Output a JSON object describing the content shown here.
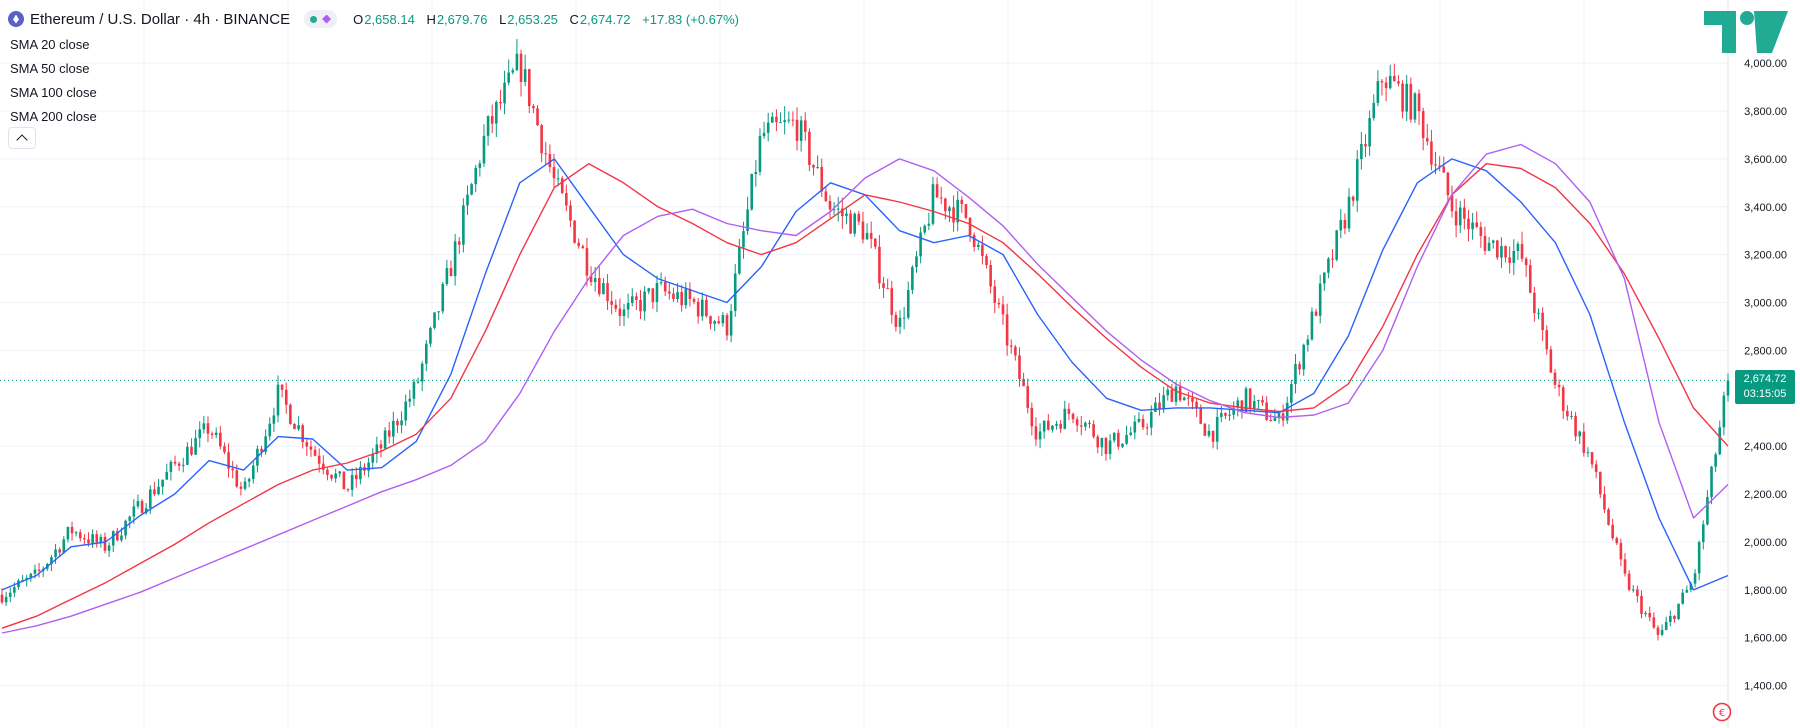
{
  "header": {
    "symbol_title": "Ethereum / U.S. Dollar · 4h · BINANCE",
    "ohlc": {
      "open_label": "O",
      "open": "2,658.14",
      "high_label": "H",
      "high": "2,679.76",
      "low_label": "L",
      "low": "2,653.25",
      "close_label": "C",
      "close": "2,674.72",
      "change": "+17.83 (+0.67%)"
    }
  },
  "indicators": [
    "SMA 20 close",
    "SMA 50 close",
    "SMA 100 close",
    "SMA 200 close"
  ],
  "colors": {
    "up": "#089981",
    "down": "#f23645",
    "grid": "#f0f3fa",
    "sma20": "#2962ff",
    "sma50": "#f23645",
    "sma200": "#b05ff2",
    "text": "#131722"
  },
  "price_label": {
    "price": "2,674.72",
    "countdown": "03:15:05"
  },
  "chart_data": {
    "type": "line",
    "representation": "candlestick",
    "y_axis_ticks": [
      "4,000.00",
      "3,800.00",
      "3,600.00",
      "3,400.00",
      "3,200.00",
      "3,000.00",
      "2,800.00",
      "2,400.00",
      "2,200.00",
      "2,000.00",
      "1,800.00",
      "1,600.00",
      "1,400.00"
    ],
    "ylim": [
      1340,
      4180
    ],
    "last_price": 2674.72,
    "x": [
      0,
      2,
      4,
      6,
      8,
      10,
      12,
      14,
      16,
      18,
      20,
      22,
      24,
      26,
      28,
      30,
      32,
      34,
      36,
      38,
      40,
      42,
      44,
      46,
      48,
      50,
      52,
      54,
      56,
      58,
      60,
      62,
      64,
      66,
      68,
      70,
      72,
      74,
      76,
      78,
      80,
      82,
      84,
      86,
      88,
      90,
      92,
      94,
      96,
      98,
      100
    ],
    "series": [
      {
        "values": [
          1780,
          1860,
          2050,
          1980,
          2150,
          2320,
          2480,
          2200,
          2620,
          2380,
          2220,
          2400,
          2650,
          3150,
          3700,
          4000,
          3500,
          3150,
          2950,
          3050,
          3000,
          2900,
          3700,
          3750,
          3400,
          3300,
          2900,
          3450,
          3350,
          2900,
          2450,
          2550,
          2400,
          2480,
          2650,
          2450,
          2600,
          2500,
          2950,
          3400,
          3950,
          3800,
          3400,
          3250,
          3200,
          2650,
          2350,
          1850,
          1600,
          1840,
          2674.72
        ]
      },
      {
        "values": [
          1800,
          1860,
          1980,
          2000,
          2110,
          2200,
          2340,
          2300,
          2440,
          2430,
          2300,
          2310,
          2420,
          2700,
          3120,
          3500,
          3600,
          3400,
          3200,
          3100,
          3050,
          3000,
          3150,
          3380,
          3500,
          3450,
          3300,
          3250,
          3280,
          3200,
          2950,
          2750,
          2600,
          2550,
          2560,
          2560,
          2550,
          2540,
          2620,
          2860,
          3220,
          3500,
          3600,
          3550,
          3420,
          3250,
          2950,
          2500,
          2100,
          1800,
          1860
        ]
      },
      {
        "values": [
          1640,
          1690,
          1760,
          1830,
          1910,
          1990,
          2080,
          2160,
          2240,
          2300,
          2330,
          2380,
          2450,
          2600,
          2880,
          3200,
          3480,
          3580,
          3500,
          3400,
          3330,
          3250,
          3200,
          3250,
          3350,
          3450,
          3420,
          3380,
          3330,
          3250,
          3120,
          2980,
          2850,
          2730,
          2630,
          2580,
          2560,
          2545,
          2560,
          2660,
          2900,
          3200,
          3450,
          3580,
          3560,
          3480,
          3330,
          3120,
          2850,
          2560,
          2400
        ]
      },
      {
        "values": [
          1620,
          1650,
          1690,
          1740,
          1790,
          1850,
          1910,
          1970,
          2030,
          2090,
          2150,
          2210,
          2260,
          2320,
          2420,
          2620,
          2880,
          3100,
          3280,
          3360,
          3390,
          3330,
          3300,
          3280,
          3380,
          3520,
          3600,
          3550,
          3440,
          3320,
          3160,
          3020,
          2880,
          2760,
          2660,
          2590,
          2540,
          2520,
          2530,
          2580,
          2800,
          3150,
          3450,
          3620,
          3660,
          3580,
          3420,
          3100,
          2500,
          2100,
          2240
        ]
      }
    ]
  }
}
